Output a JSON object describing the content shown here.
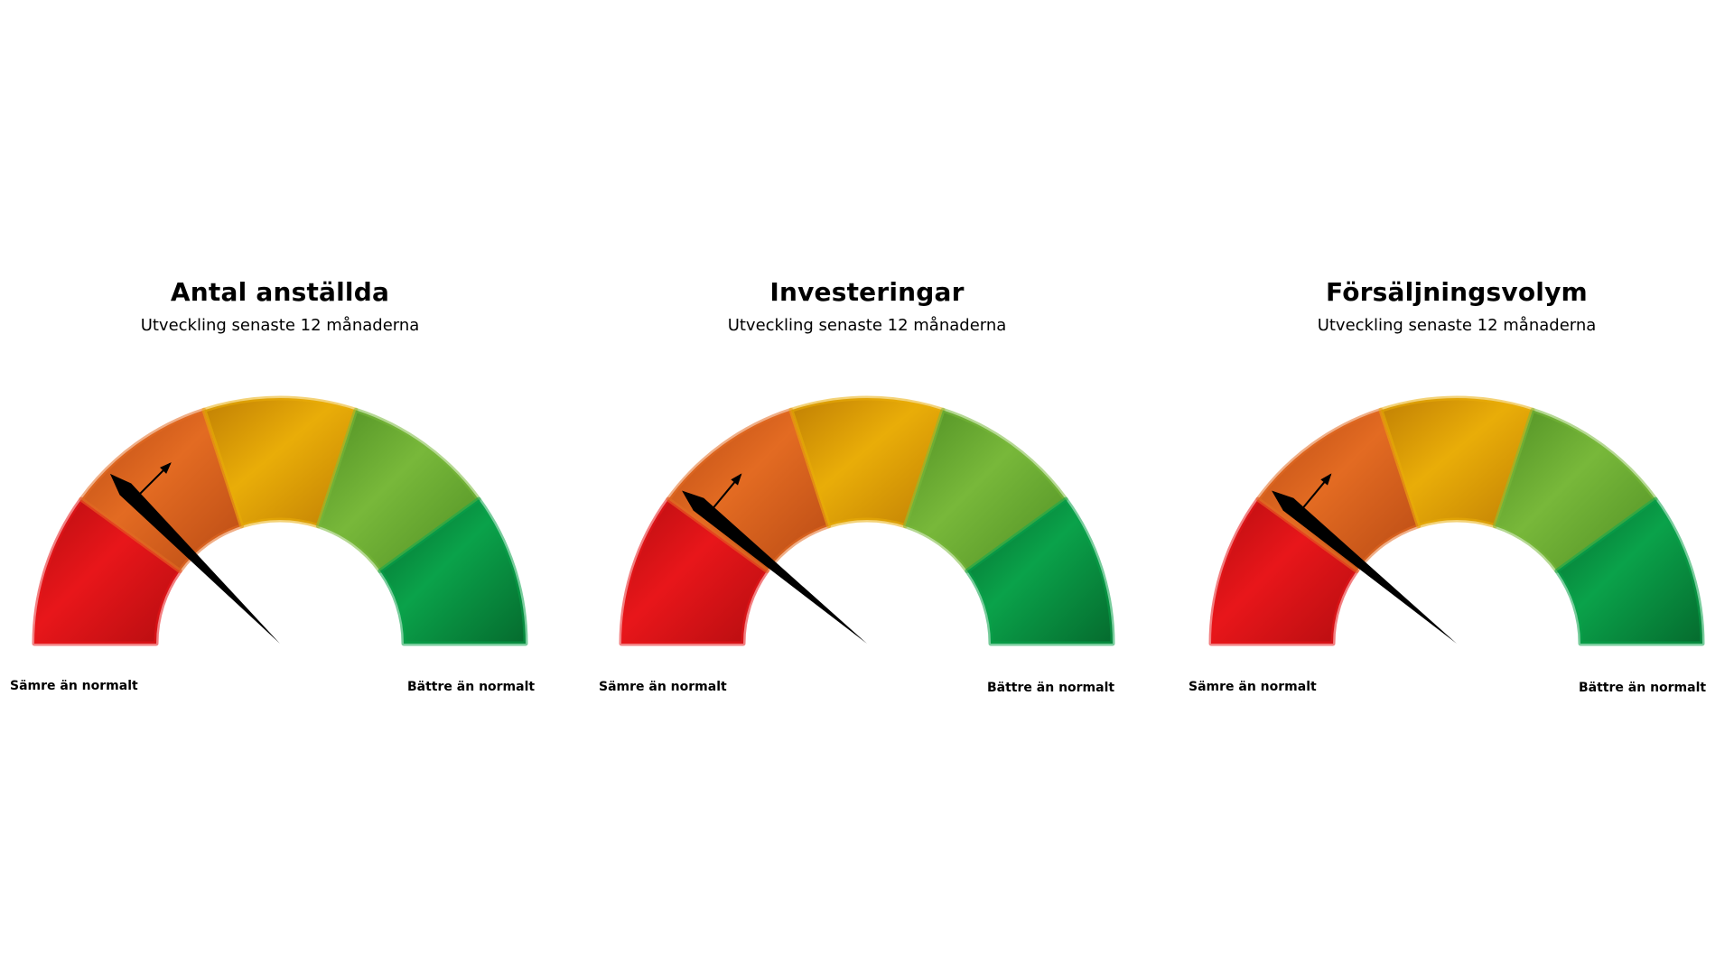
{
  "gauges": [
    {
      "title": "Antal anställda",
      "subtitle": "Utveckling senaste 12 månaderna",
      "low_label": "Sämre än normalt",
      "high_label": "Bättre än normalt"
    },
    {
      "title": "Investeringar",
      "subtitle": "Utveckling senaste 12 månaderna",
      "low_label": "Sämre än normalt",
      "high_label": "Bättre än normalt"
    },
    {
      "title": "Försäljningsvolym",
      "subtitle": "Utveckling senaste 12 månaderna",
      "low_label": "Sämre än normalt",
      "high_label": "Bättre än normalt"
    }
  ],
  "chart_data": [
    {
      "type": "gauge",
      "title": "Antal anställda",
      "subtitle": "Utveckling senaste 12 månaderna",
      "range": [
        0,
        1
      ],
      "bands": [
        {
          "from": 0.0,
          "to": 0.2,
          "color": "#e8161a"
        },
        {
          "from": 0.2,
          "to": 0.4,
          "color": "#e36b22"
        },
        {
          "from": 0.4,
          "to": 0.6,
          "color": "#e9ad08"
        },
        {
          "from": 0.6,
          "to": 0.8,
          "color": "#78b83a"
        },
        {
          "from": 0.8,
          "to": 1.0,
          "color": "#0aa24a"
        }
      ],
      "needle_value": 0.25,
      "trend": "down",
      "low_label": "Sämre än normalt",
      "high_label": "Bättre än normalt"
    },
    {
      "type": "gauge",
      "title": "Investeringar",
      "subtitle": "Utveckling senaste 12 månaderna",
      "range": [
        0,
        1
      ],
      "bands": [
        {
          "from": 0.0,
          "to": 0.2,
          "color": "#e8161a"
        },
        {
          "from": 0.2,
          "to": 0.4,
          "color": "#e36b22"
        },
        {
          "from": 0.4,
          "to": 0.6,
          "color": "#e9ad08"
        },
        {
          "from": 0.6,
          "to": 0.8,
          "color": "#78b83a"
        },
        {
          "from": 0.8,
          "to": 1.0,
          "color": "#0aa24a"
        }
      ],
      "needle_value": 0.22,
      "trend": "down",
      "low_label": "Sämre än normalt",
      "high_label": "Bättre än normalt"
    },
    {
      "type": "gauge",
      "title": "Försäljningsvolym",
      "subtitle": "Utveckling senaste 12 månaderna",
      "range": [
        0,
        1
      ],
      "bands": [
        {
          "from": 0.0,
          "to": 0.2,
          "color": "#e8161a"
        },
        {
          "from": 0.2,
          "to": 0.4,
          "color": "#e36b22"
        },
        {
          "from": 0.4,
          "to": 0.6,
          "color": "#e9ad08"
        },
        {
          "from": 0.6,
          "to": 0.8,
          "color": "#78b83a"
        },
        {
          "from": 0.8,
          "to": 1.0,
          "color": "#0aa24a"
        }
      ],
      "needle_value": 0.22,
      "trend": "down",
      "low_label": "Sämre än normalt",
      "high_label": "Bättre än normalt"
    }
  ]
}
